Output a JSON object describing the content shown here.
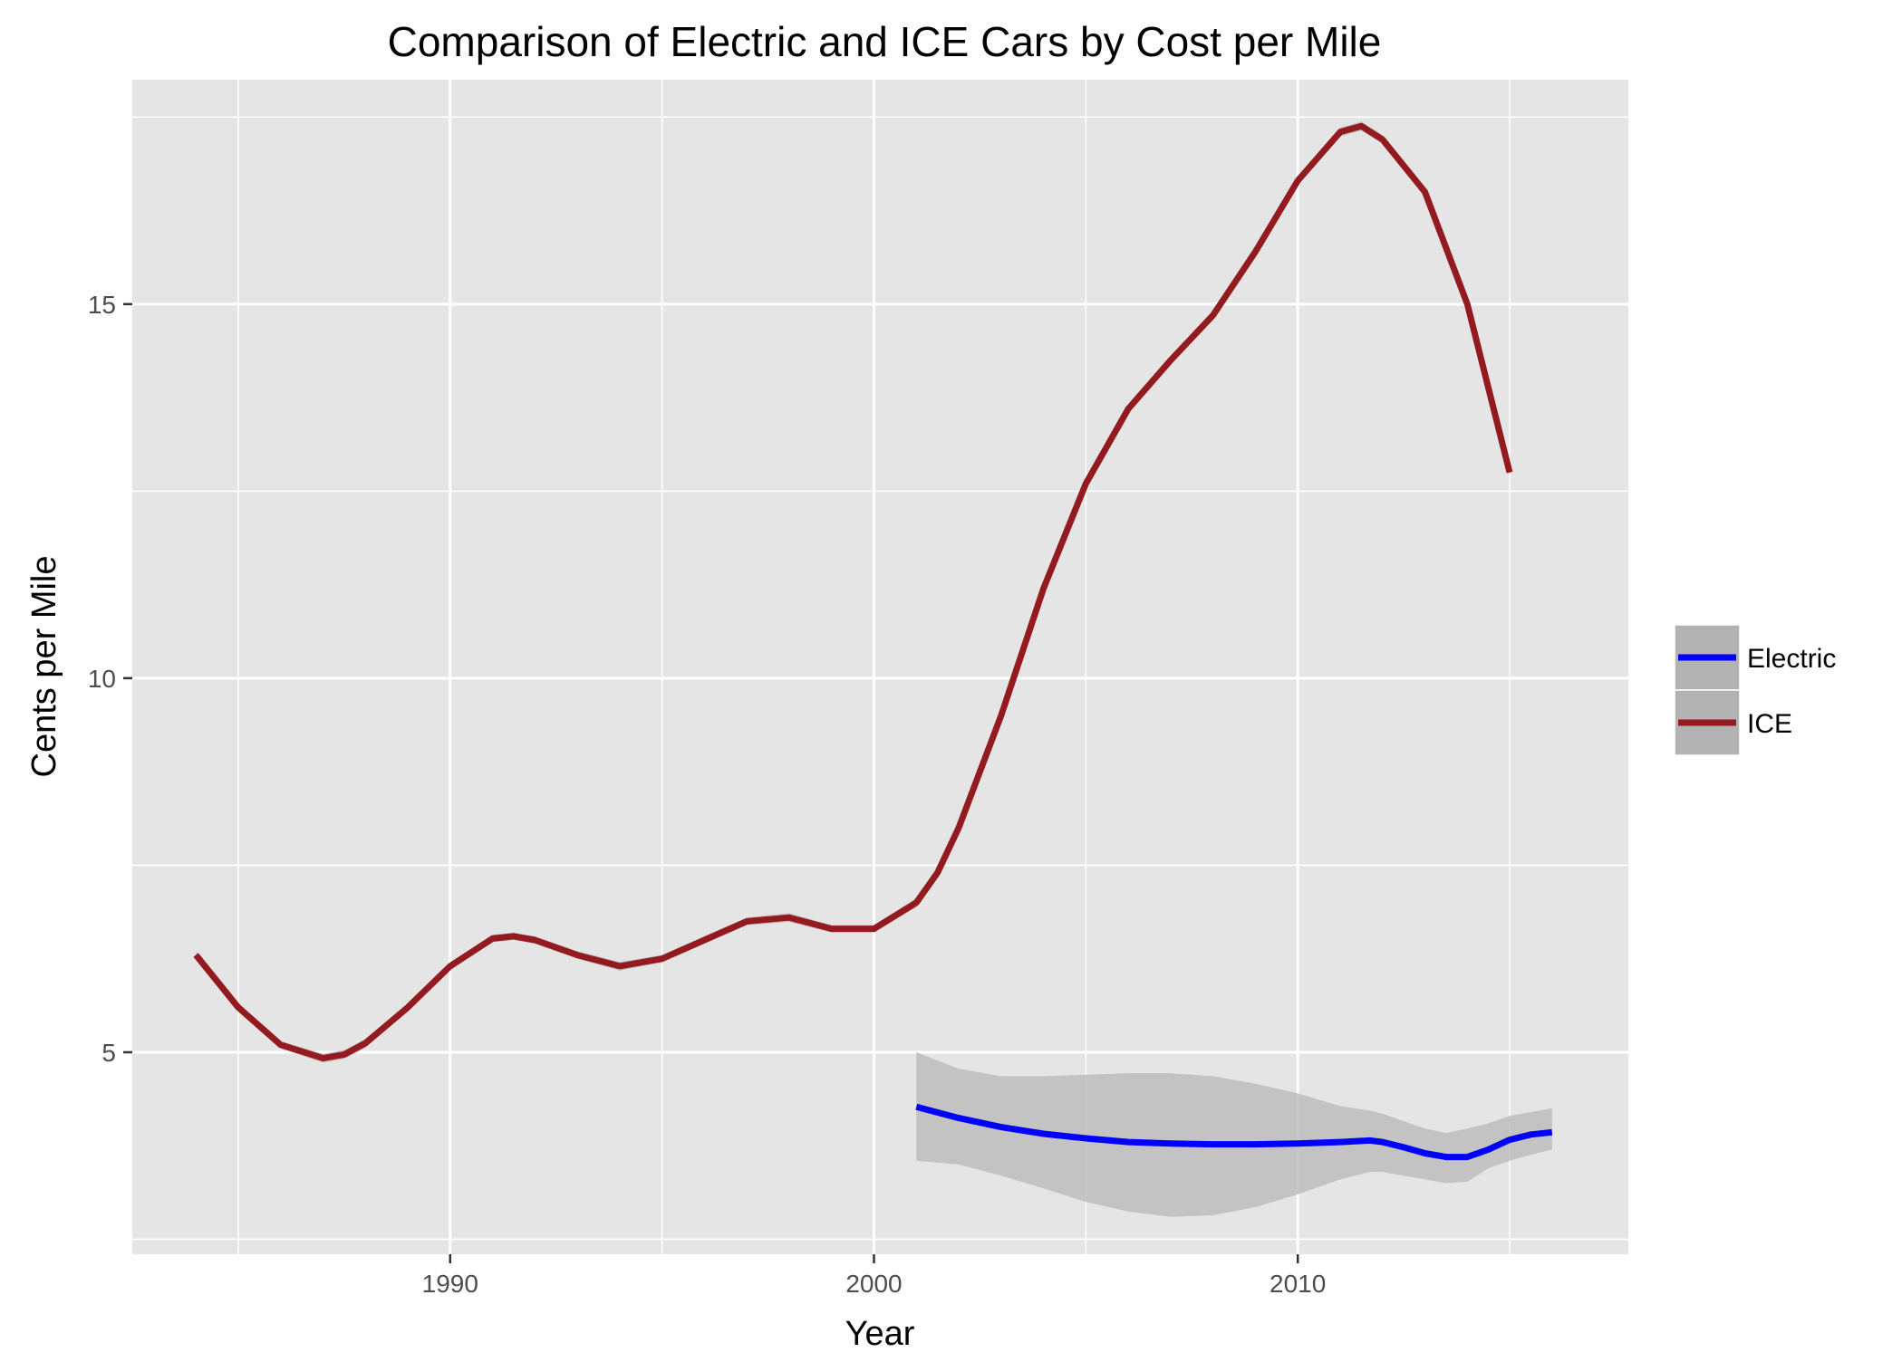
{
  "chart_data": {
    "type": "line",
    "title": "Comparison of Electric and ICE Cars by Cost per Mile",
    "xlabel": "Year",
    "ylabel": "Cents per Mile",
    "xlim": [
      1982.5,
      2017.8
    ],
    "ylim": [
      2.3,
      18.0
    ],
    "x_ticks": [
      1990,
      2000,
      2010
    ],
    "x_tick_labels": [
      "1990",
      "2000",
      "2010"
    ],
    "x_minor_ticks": [
      1985,
      1995,
      2005,
      2015
    ],
    "y_ticks": [
      5,
      10,
      15
    ],
    "y_tick_labels": [
      "5",
      "10",
      "15"
    ],
    "y_minor_ticks": [
      2.5,
      7.5,
      12.5,
      17.5
    ],
    "grid": true,
    "legend_position": "right",
    "colors": {
      "panel": "#e5e5e5",
      "grid": "#ffffff",
      "ribbon": "#bdbdbd",
      "legend_key": "#b3b3b3"
    },
    "series": [
      {
        "name": "Electric",
        "color": "#0000ff",
        "x": [
          2001,
          2002,
          2003,
          2004,
          2005,
          2006,
          2007,
          2008,
          2009,
          2010,
          2011,
          2011.7,
          2012,
          2012.5,
          2013,
          2013.5,
          2014,
          2014.5,
          2015,
          2015.5,
          2016
        ],
        "y": [
          4.27,
          4.12,
          4.0,
          3.91,
          3.85,
          3.8,
          3.78,
          3.77,
          3.77,
          3.78,
          3.8,
          3.82,
          3.8,
          3.73,
          3.65,
          3.6,
          3.6,
          3.7,
          3.83,
          3.9,
          3.93
        ],
        "ci_lower": [
          3.55,
          3.5,
          3.35,
          3.18,
          3.0,
          2.87,
          2.8,
          2.82,
          2.93,
          3.1,
          3.3,
          3.4,
          3.4,
          3.35,
          3.3,
          3.25,
          3.27,
          3.45,
          3.55,
          3.63,
          3.7
        ],
        "ci_upper": [
          5.0,
          4.78,
          4.68,
          4.68,
          4.7,
          4.72,
          4.72,
          4.68,
          4.58,
          4.45,
          4.28,
          4.22,
          4.18,
          4.08,
          3.98,
          3.92,
          3.98,
          4.05,
          4.15,
          4.2,
          4.25
        ]
      },
      {
        "name": "ICE",
        "color": "#931a1e",
        "x": [
          1984,
          1985,
          1986,
          1987,
          1987.5,
          1988,
          1989,
          1990,
          1991,
          1991.5,
          1992,
          1993,
          1994,
          1995,
          1996,
          1997,
          1998,
          1999,
          2000,
          2001,
          2001.5,
          2002,
          2003,
          2004,
          2005,
          2006,
          2007,
          2008,
          2009,
          2010,
          2011,
          2011.5,
          2012,
          2013,
          2014,
          2015
        ],
        "y": [
          6.3,
          5.6,
          5.1,
          4.92,
          4.97,
          5.12,
          5.6,
          6.15,
          6.52,
          6.55,
          6.5,
          6.3,
          6.15,
          6.25,
          6.5,
          6.75,
          6.8,
          6.65,
          6.65,
          7.0,
          7.4,
          8.0,
          9.5,
          11.2,
          12.6,
          13.6,
          14.25,
          14.85,
          15.7,
          16.65,
          17.3,
          17.38,
          17.2,
          16.5,
          15.0,
          12.75
        ],
        "ci_lower": [
          6.25,
          5.55,
          5.05,
          4.86,
          4.91,
          5.06,
          5.55,
          6.1,
          6.47,
          6.5,
          6.45,
          6.25,
          6.09,
          6.2,
          6.45,
          6.7,
          6.74,
          6.6,
          6.6,
          6.94,
          7.35,
          7.95,
          9.45,
          11.15,
          12.55,
          13.55,
          14.2,
          14.8,
          15.65,
          16.6,
          17.24,
          17.32,
          17.14,
          16.45,
          14.95,
          12.7
        ],
        "ci_upper": [
          6.35,
          5.65,
          5.15,
          4.98,
          5.03,
          5.18,
          5.65,
          6.2,
          6.57,
          6.6,
          6.55,
          6.35,
          6.21,
          6.3,
          6.55,
          6.8,
          6.86,
          6.7,
          6.7,
          7.06,
          7.45,
          8.05,
          9.55,
          11.25,
          12.65,
          13.65,
          14.3,
          14.9,
          15.75,
          16.7,
          17.36,
          17.44,
          17.26,
          16.55,
          15.05,
          12.8
        ]
      }
    ]
  }
}
